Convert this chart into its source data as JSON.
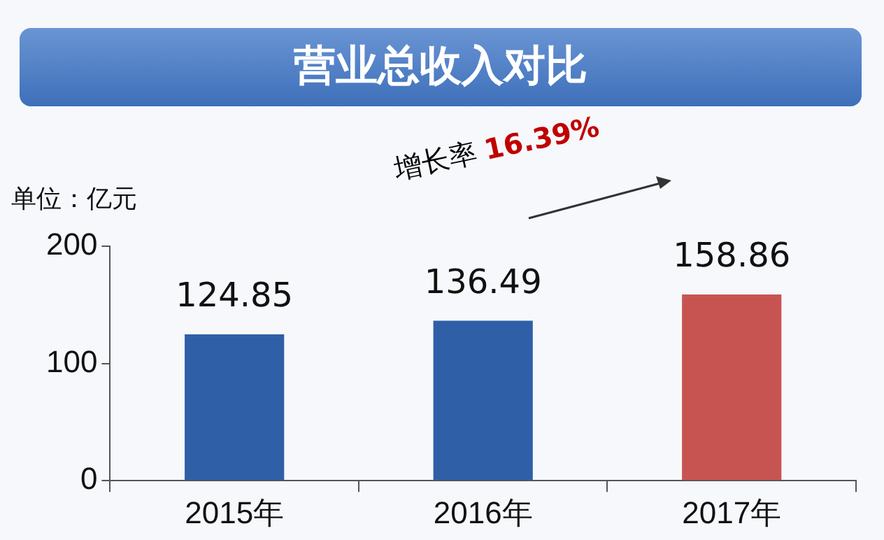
{
  "chart_data": {
    "type": "bar",
    "title": "营业总收入对比",
    "ylabel": "单位：亿元",
    "categories": [
      "2015年",
      "2016年",
      "2017年"
    ],
    "values": [
      124.85,
      136.49,
      158.86
    ],
    "colors": [
      "#2f5fa6",
      "#2f5fa6",
      "#c85452"
    ],
    "ylim": [
      0,
      200
    ],
    "yticks": [
      0,
      100,
      200
    ],
    "grid": false,
    "data_labels": true,
    "annotations": [
      "增长率",
      "16.39%"
    ]
  }
}
